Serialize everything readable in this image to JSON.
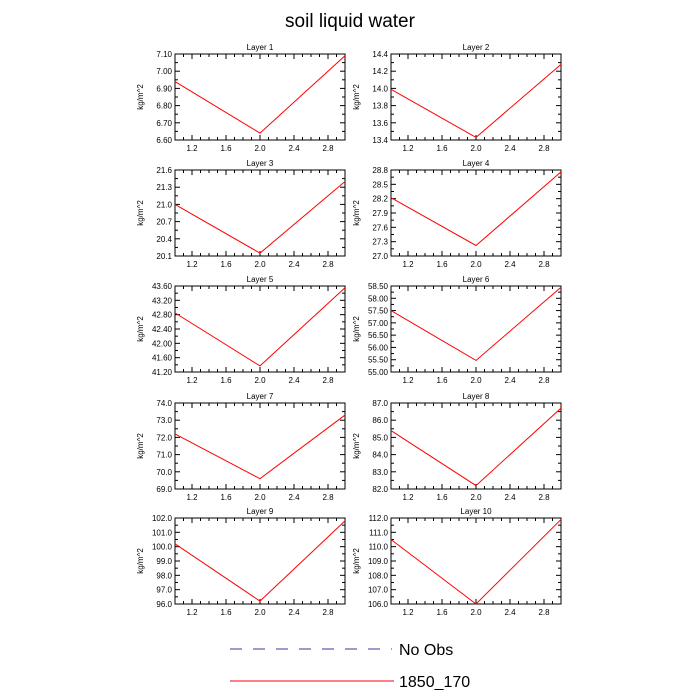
{
  "title": "soil liquid water",
  "legend": [
    {
      "label": "No Obs",
      "color": "#3a3a9a",
      "dash": true
    },
    {
      "label": "1850_170",
      "color": "#ff0000",
      "dash": false
    }
  ],
  "chart_data": [
    {
      "type": "line",
      "title": "Layer 1",
      "ylabel": "kg/m^2",
      "x": [
        1.0,
        2.0,
        3.0
      ],
      "series": [
        {
          "name": "1850_170",
          "values": [
            6.94,
            6.64,
            7.09
          ]
        }
      ],
      "xlim": [
        1.0,
        3.0
      ],
      "ylim": [
        6.6,
        7.1
      ],
      "yticks": [
        6.6,
        6.7,
        6.8,
        6.9,
        7.0,
        7.1
      ],
      "ytick_labels": [
        "6.60",
        "6.70",
        "6.80",
        "6.90",
        "7.00",
        "7.10"
      ],
      "xticks": [
        1.2,
        1.6,
        2.0,
        2.4,
        2.8
      ],
      "xtick_labels": [
        "1.2",
        "1.6",
        "2.0",
        "2.4",
        "2.8"
      ]
    },
    {
      "type": "line",
      "title": "Layer 2",
      "ylabel": "kg/m^2",
      "x": [
        1.0,
        2.0,
        3.0
      ],
      "series": [
        {
          "name": "1850_170",
          "values": [
            13.99,
            13.43,
            14.28
          ]
        }
      ],
      "xlim": [
        1.0,
        3.0
      ],
      "ylim": [
        13.4,
        14.4
      ],
      "yticks": [
        13.4,
        13.6,
        13.8,
        14.0,
        14.2,
        14.4
      ],
      "ytick_labels": [
        "13.4",
        "13.6",
        "13.8",
        "14.0",
        "14.2",
        "14.4"
      ],
      "xticks": [
        1.2,
        1.6,
        2.0,
        2.4,
        2.8
      ],
      "xtick_labels": [
        "1.2",
        "1.6",
        "2.0",
        "2.4",
        "2.8"
      ]
    },
    {
      "type": "line",
      "title": "Layer 3",
      "ylabel": "kg/m^2",
      "x": [
        1.0,
        2.0,
        3.0
      ],
      "series": [
        {
          "name": "1850_170",
          "values": [
            21.0,
            20.15,
            21.4
          ]
        }
      ],
      "xlim": [
        1.0,
        3.0
      ],
      "ylim": [
        20.1,
        21.6
      ],
      "yticks": [
        20.1,
        20.4,
        20.7,
        21.0,
        21.3,
        21.6
      ],
      "ytick_labels": [
        "20.1",
        "20.4",
        "20.7",
        "21.0",
        "21.3",
        "21.6"
      ],
      "xticks": [
        1.2,
        1.6,
        2.0,
        2.4,
        2.8
      ],
      "xtick_labels": [
        "1.2",
        "1.6",
        "2.0",
        "2.4",
        "2.8"
      ]
    },
    {
      "type": "line",
      "title": "Layer 4",
      "ylabel": "kg/m^2",
      "x": [
        1.0,
        2.0,
        3.0
      ],
      "series": [
        {
          "name": "1850_170",
          "values": [
            28.22,
            27.22,
            28.76
          ]
        }
      ],
      "xlim": [
        1.0,
        3.0
      ],
      "ylim": [
        27.0,
        28.8
      ],
      "yticks": [
        27.0,
        27.3,
        27.6,
        27.9,
        28.2,
        28.5,
        28.8
      ],
      "ytick_labels": [
        "27.0",
        "27.3",
        "27.6",
        "27.9",
        "28.2",
        "28.5",
        "28.8"
      ],
      "xticks": [
        1.2,
        1.6,
        2.0,
        2.4,
        2.8
      ],
      "xtick_labels": [
        "1.2",
        "1.6",
        "2.0",
        "2.4",
        "2.8"
      ]
    },
    {
      "type": "line",
      "title": "Layer 5",
      "ylabel": "kg/m^2",
      "x": [
        1.0,
        2.0,
        3.0
      ],
      "series": [
        {
          "name": "1850_170",
          "values": [
            42.85,
            41.37,
            43.55
          ]
        }
      ],
      "xlim": [
        1.0,
        3.0
      ],
      "ylim": [
        41.2,
        43.6
      ],
      "yticks": [
        41.2,
        41.6,
        42.0,
        42.4,
        42.8,
        43.2,
        43.6
      ],
      "ytick_labels": [
        "41.20",
        "41.60",
        "42.00",
        "42.40",
        "42.80",
        "43.20",
        "43.60"
      ],
      "xticks": [
        1.2,
        1.6,
        2.0,
        2.4,
        2.8
      ],
      "xtick_labels": [
        "1.2",
        "1.6",
        "2.0",
        "2.4",
        "2.8"
      ]
    },
    {
      "type": "line",
      "title": "Layer 6",
      "ylabel": "kg/m^2",
      "x": [
        1.0,
        2.0,
        3.0
      ],
      "series": [
        {
          "name": "1850_170",
          "values": [
            57.5,
            55.47,
            58.45
          ]
        }
      ],
      "xlim": [
        1.0,
        3.0
      ],
      "ylim": [
        55.0,
        58.5
      ],
      "yticks": [
        55.0,
        55.5,
        56.0,
        56.5,
        57.0,
        57.5,
        58.0,
        58.5
      ],
      "ytick_labels": [
        "55.00",
        "55.50",
        "56.00",
        "56.50",
        "57.00",
        "57.50",
        "58.00",
        "58.50"
      ],
      "xticks": [
        1.2,
        1.6,
        2.0,
        2.4,
        2.8
      ],
      "xtick_labels": [
        "1.2",
        "1.6",
        "2.0",
        "2.4",
        "2.8"
      ]
    },
    {
      "type": "line",
      "title": "Layer 7",
      "ylabel": "kg/m^2",
      "x": [
        1.0,
        2.0,
        3.0
      ],
      "series": [
        {
          "name": "1850_170",
          "values": [
            72.2,
            69.6,
            73.3
          ]
        }
      ],
      "xlim": [
        1.0,
        3.0
      ],
      "ylim": [
        69.0,
        74.0
      ],
      "yticks": [
        69.0,
        70.0,
        71.0,
        72.0,
        73.0,
        74.0
      ],
      "ytick_labels": [
        "69.0",
        "70.0",
        "71.0",
        "72.0",
        "73.0",
        "74.0"
      ],
      "xticks": [
        1.2,
        1.6,
        2.0,
        2.4,
        2.8
      ],
      "xtick_labels": [
        "1.2",
        "1.6",
        "2.0",
        "2.4",
        "2.8"
      ]
    },
    {
      "type": "line",
      "title": "Layer 8",
      "ylabel": "kg/m^2",
      "x": [
        1.0,
        2.0,
        3.0
      ],
      "series": [
        {
          "name": "1850_170",
          "values": [
            85.4,
            82.2,
            86.7
          ]
        }
      ],
      "xlim": [
        1.0,
        3.0
      ],
      "ylim": [
        82.0,
        87.0
      ],
      "yticks": [
        82.0,
        83.0,
        84.0,
        85.0,
        86.0,
        87.0
      ],
      "ytick_labels": [
        "82.0",
        "83.0",
        "84.0",
        "85.0",
        "86.0",
        "87.0"
      ],
      "xticks": [
        1.2,
        1.6,
        2.0,
        2.4,
        2.8
      ],
      "xtick_labels": [
        "1.2",
        "1.6",
        "2.0",
        "2.4",
        "2.8"
      ]
    },
    {
      "type": "line",
      "title": "Layer 9",
      "ylabel": "kg/m^2",
      "x": [
        1.0,
        2.0,
        3.0
      ],
      "series": [
        {
          "name": "1850_170",
          "values": [
            100.2,
            96.2,
            101.8
          ]
        }
      ],
      "xlim": [
        1.0,
        3.0
      ],
      "ylim": [
        96.0,
        102.0
      ],
      "yticks": [
        96.0,
        97.0,
        98.0,
        99.0,
        100.0,
        101.0,
        102.0
      ],
      "ytick_labels": [
        "96.0",
        "97.0",
        "98.0",
        "99.0",
        "100.0",
        "101.0",
        "102.0"
      ],
      "xticks": [
        1.2,
        1.6,
        2.0,
        2.4,
        2.8
      ],
      "xtick_labels": [
        "1.2",
        "1.6",
        "2.0",
        "2.4",
        "2.8"
      ]
    },
    {
      "type": "line",
      "title": "Layer 10",
      "ylabel": "kg/m^2",
      "x": [
        1.0,
        2.0,
        3.0
      ],
      "series": [
        {
          "name": "1850_170",
          "values": [
            110.5,
            106.0,
            111.9
          ]
        }
      ],
      "xlim": [
        1.0,
        3.0
      ],
      "ylim": [
        106.0,
        112.0
      ],
      "yticks": [
        106.0,
        107.0,
        108.0,
        109.0,
        110.0,
        111.0,
        112.0
      ],
      "ytick_labels": [
        "106.0",
        "107.0",
        "108.0",
        "109.0",
        "110.0",
        "111.0",
        "112.0"
      ],
      "xticks": [
        1.2,
        1.6,
        2.0,
        2.4,
        2.8
      ],
      "xtick_labels": [
        "1.2",
        "1.6",
        "2.0",
        "2.4",
        "2.8"
      ]
    }
  ]
}
